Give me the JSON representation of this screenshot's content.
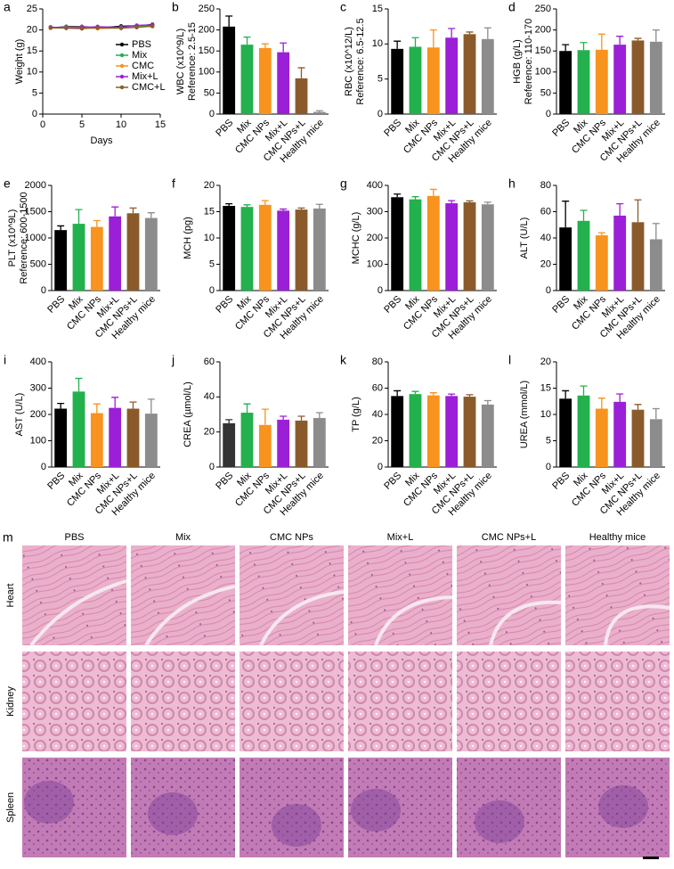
{
  "chart_data": [
    {
      "type": "line",
      "label": "a",
      "ylabel": "Weight (g)",
      "xlabel": "Days",
      "legend": "right",
      "x": [
        1,
        3,
        5,
        7,
        10,
        12,
        14
      ],
      "xlim": [
        0,
        15
      ],
      "xticks": [
        0,
        5,
        10,
        15
      ],
      "ylim": [
        0,
        25
      ],
      "yticks": [
        0,
        5,
        10,
        15,
        20,
        25
      ],
      "series": [
        {
          "name": "PBS",
          "color": "#000000",
          "values": [
            20.5,
            20.8,
            20.8,
            20.5,
            20.9,
            21.0,
            21.3
          ]
        },
        {
          "name": "Mix",
          "color": "#22b14c",
          "values": [
            20.6,
            20.7,
            20.5,
            20.6,
            20.7,
            20.9,
            21.0
          ]
        },
        {
          "name": "CMC",
          "color": "#f7931e",
          "values": [
            20.4,
            20.6,
            20.7,
            20.3,
            20.5,
            20.7,
            20.8
          ]
        },
        {
          "name": "Mix+L",
          "color": "#9b1fd6",
          "values": [
            20.7,
            20.5,
            20.6,
            20.8,
            20.6,
            21.1,
            21.2
          ]
        },
        {
          "name": "CMC+L",
          "color": "#8b5a2b",
          "values": [
            20.5,
            20.4,
            20.3,
            20.5,
            20.4,
            20.6,
            20.9
          ]
        }
      ]
    },
    {
      "type": "bar",
      "label": "b",
      "ylabel": "WBC (x10^9/L)",
      "note": "Reference: 2.5-15",
      "categories": [
        "PBS",
        "Mix",
        "CMC NPs",
        "Mix+L",
        "CMC NPs+L",
        "Healthy mice"
      ],
      "colors": [
        "#000000",
        "#22b14c",
        "#f7931e",
        "#9b1fd6",
        "#8b5a2b",
        "#8c8c8c"
      ],
      "values": [
        208,
        165,
        157,
        147,
        85,
        5
      ],
      "errors": [
        25,
        18,
        10,
        22,
        25,
        3
      ],
      "ylim": [
        0,
        250
      ],
      "yticks": [
        0,
        50,
        100,
        150,
        200,
        250
      ]
    },
    {
      "type": "bar",
      "label": "c",
      "ylabel": "RBC (x10^12/L)",
      "note": "Reference: 6.5-12.5",
      "categories": [
        "PBS",
        "Mix",
        "CMC NPs",
        "Mix+L",
        "CMC NPs+L",
        "Healthy mice"
      ],
      "colors": [
        "#000000",
        "#22b14c",
        "#f7931e",
        "#9b1fd6",
        "#8b5a2b",
        "#8c8c8c"
      ],
      "values": [
        9.3,
        9.6,
        9.5,
        10.9,
        11.4,
        10.7
      ],
      "errors": [
        1.1,
        1.3,
        2.5,
        1.3,
        0.3,
        1.6
      ],
      "ylim": [
        0,
        15
      ],
      "yticks": [
        0,
        5,
        10,
        15
      ]
    },
    {
      "type": "bar",
      "label": "d",
      "ylabel": "HGB (g/L)",
      "note": "Reference: 110-170",
      "categories": [
        "PBS",
        "Mix",
        "CMC NPs",
        "Mix+L",
        "CMC NPs+L",
        "Healthy mice"
      ],
      "colors": [
        "#000000",
        "#22b14c",
        "#f7931e",
        "#9b1fd6",
        "#8b5a2b",
        "#8c8c8c"
      ],
      "values": [
        150,
        152,
        153,
        165,
        175,
        172
      ],
      "errors": [
        15,
        18,
        37,
        20,
        5,
        28
      ],
      "ylim": [
        0,
        250
      ],
      "yticks": [
        0,
        50,
        100,
        150,
        200,
        250
      ]
    },
    {
      "type": "bar",
      "label": "e",
      "ylabel": "PLT (x10^9L)",
      "note": "Reference: 600-1500",
      "categories": [
        "PBS",
        "Mix",
        "CMC NPs",
        "Mix+L",
        "CMC NPs+L",
        "Healthy mice"
      ],
      "colors": [
        "#000000",
        "#22b14c",
        "#f7931e",
        "#9b1fd6",
        "#8b5a2b",
        "#8c8c8c"
      ],
      "values": [
        1150,
        1270,
        1210,
        1410,
        1470,
        1380
      ],
      "errors": [
        80,
        270,
        120,
        180,
        100,
        100
      ],
      "ylim": [
        0,
        2000
      ],
      "yticks": [
        0,
        500,
        1000,
        1500,
        2000
      ]
    },
    {
      "type": "bar",
      "label": "f",
      "ylabel": "MCH (pg)",
      "categories": [
        "PBS",
        "Mix",
        "CMC NPs",
        "Mix+L",
        "CMC NPs+L",
        "Healthy mice"
      ],
      "colors": [
        "#000000",
        "#22b14c",
        "#f7931e",
        "#9b1fd6",
        "#8b5a2b",
        "#8c8c8c"
      ],
      "values": [
        16.1,
        15.9,
        16.3,
        15.2,
        15.4,
        15.6
      ],
      "errors": [
        0.4,
        0.4,
        0.8,
        0.3,
        0.3,
        0.8
      ],
      "ylim": [
        0,
        20
      ],
      "yticks": [
        0,
        5,
        10,
        15,
        20
      ]
    },
    {
      "type": "bar",
      "label": "g",
      "ylabel": "MCHC (g/L)",
      "categories": [
        "PBS",
        "Mix",
        "CMC NPs",
        "Mix+L",
        "CMC NPs+L",
        "Healthy mice"
      ],
      "colors": [
        "#000000",
        "#22b14c",
        "#f7931e",
        "#9b1fd6",
        "#8b5a2b",
        "#8c8c8c"
      ],
      "values": [
        355,
        347,
        360,
        332,
        336,
        328
      ],
      "errors": [
        12,
        10,
        25,
        10,
        5,
        8
      ],
      "ylim": [
        0,
        400
      ],
      "yticks": [
        0,
        100,
        200,
        300,
        400
      ]
    },
    {
      "type": "bar",
      "label": "h",
      "ylabel": "ALT (U/L)",
      "categories": [
        "PBS",
        "Mix",
        "CMC NPs",
        "Mix+L",
        "CMC NPs+L",
        "Healthy mice"
      ],
      "colors": [
        "#000000",
        "#22b14c",
        "#f7931e",
        "#9b1fd6",
        "#8b5a2b",
        "#8c8c8c"
      ],
      "values": [
        48,
        53,
        42,
        57,
        52,
        39
      ],
      "errors": [
        20,
        8,
        2,
        9,
        17,
        12
      ],
      "ylim": [
        0,
        80
      ],
      "yticks": [
        0,
        20,
        40,
        60,
        80
      ]
    },
    {
      "type": "bar",
      "label": "i",
      "ylabel": "AST (U/L)",
      "categories": [
        "PBS",
        "Mix",
        "CMC NPs",
        "Mix+L",
        "CMC NPs+L",
        "Healthy mice"
      ],
      "colors": [
        "#000000",
        "#22b14c",
        "#f7931e",
        "#9b1fd6",
        "#8b5a2b",
        "#8c8c8c"
      ],
      "values": [
        222,
        287,
        205,
        225,
        222,
        203
      ],
      "errors": [
        20,
        50,
        35,
        40,
        25,
        55
      ],
      "ylim": [
        0,
        400
      ],
      "yticks": [
        0,
        100,
        200,
        300,
        400
      ]
    },
    {
      "type": "bar",
      "label": "j",
      "ylabel": "CREA (µmol/L)",
      "categories": [
        "PBS",
        "Mix",
        "CMC NPs",
        "Mix+L",
        "CMC NPs+L",
        "Healthy mice"
      ],
      "colors": [
        "#333333",
        "#22b14c",
        "#f7931e",
        "#9b1fd6",
        "#8b5a2b",
        "#8c8c8c"
      ],
      "values": [
        25,
        31,
        24,
        27,
        26.5,
        28
      ],
      "errors": [
        2,
        5,
        9,
        2,
        2.5,
        3
      ],
      "ylim": [
        0,
        60
      ],
      "yticks": [
        0,
        20,
        40,
        60
      ]
    },
    {
      "type": "bar",
      "label": "k",
      "ylabel": "TP (g/L)",
      "categories": [
        "PBS",
        "Mix",
        "CMC NPs",
        "Mix+L",
        "CMC NPs+L",
        "Healthy mice"
      ],
      "colors": [
        "#000000",
        "#22b14c",
        "#f7931e",
        "#9b1fd6",
        "#8b5a2b",
        "#8c8c8c"
      ],
      "values": [
        54,
        55.5,
        54.5,
        54,
        53.5,
        47.5
      ],
      "errors": [
        4,
        2,
        2,
        1.5,
        1.5,
        3
      ],
      "ylim": [
        0,
        80
      ],
      "yticks": [
        0,
        20,
        40,
        60,
        80
      ]
    },
    {
      "type": "bar",
      "label": "l",
      "ylabel": "UREA (mmol/L)",
      "categories": [
        "PBS",
        "Mix",
        "CMC NPs",
        "Mix+L",
        "CMC NPs+L",
        "Healthy mice"
      ],
      "colors": [
        "#000000",
        "#22b14c",
        "#f7931e",
        "#9b1fd6",
        "#8b5a2b",
        "#8c8c8c"
      ],
      "values": [
        13,
        13.6,
        11.1,
        12.4,
        10.9,
        9.1
      ],
      "errors": [
        1.5,
        1.8,
        2,
        1.5,
        1,
        2
      ],
      "ylim": [
        0,
        20
      ],
      "yticks": [
        0,
        5,
        10,
        15,
        20
      ]
    }
  ],
  "histology": {
    "label": "m",
    "columns": [
      "PBS",
      "Mix",
      "CMC NPs",
      "Mix+L",
      "CMC NPs+L",
      "Healthy mice"
    ],
    "rows": [
      "Heart",
      "Kidney",
      "Spleen"
    ]
  }
}
